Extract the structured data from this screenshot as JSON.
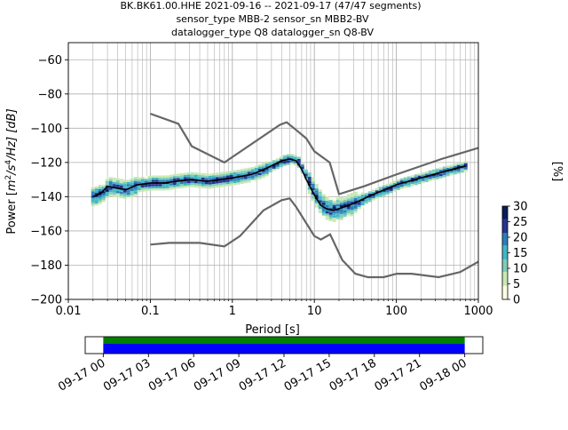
{
  "title": {
    "line1": "BK.BK61.00.HHE   2021-09-16 -- 2021-09-17  (47/47 segments)",
    "line2": "sensor_type MBB-2 sensor_sn MBB2-BV",
    "line3": "datalogger_type Q8 datalogger_sn Q8-BV"
  },
  "chart_data": {
    "type": "heatmap",
    "xlabel": "Period [s]",
    "ylabel_parts": {
      "prefix": "Power [",
      "m": "m",
      "e2": "2",
      "s": "/s",
      "e4": "4",
      "tail": "/Hz] [dB]"
    },
    "xscale": "log",
    "xlim": [
      0.01,
      1000
    ],
    "ylim": [
      -200,
      -50
    ],
    "x_ticks": [
      {
        "v": 0.01,
        "label": "0.01"
      },
      {
        "v": 0.1,
        "label": "0.1"
      },
      {
        "v": 1,
        "label": "1"
      },
      {
        "v": 10,
        "label": "10"
      },
      {
        "v": 100,
        "label": "100"
      },
      {
        "v": 1000,
        "label": "1000"
      }
    ],
    "y_ticks": [
      {
        "v": -60,
        "label": "−60"
      },
      {
        "v": -80,
        "label": "−80"
      },
      {
        "v": -100,
        "label": "−100"
      },
      {
        "v": -120,
        "label": "−120"
      },
      {
        "v": -140,
        "label": "−140"
      },
      {
        "v": -160,
        "label": "−160"
      },
      {
        "v": -180,
        "label": "−180"
      },
      {
        "v": -200,
        "label": "−200"
      }
    ],
    "grid": true,
    "nhnm": [
      [
        0.1,
        -168
      ],
      [
        0.17,
        -167
      ],
      [
        0.4,
        -167
      ],
      [
        0.8,
        -169
      ],
      [
        1.24,
        -163
      ],
      [
        2.4,
        -148
      ],
      [
        4,
        -142
      ],
      [
        5,
        -141
      ],
      [
        6,
        -146
      ],
      [
        10,
        -163
      ],
      [
        12,
        -165
      ],
      [
        15.6,
        -162
      ],
      [
        21.9,
        -177
      ],
      [
        31.6,
        -185
      ],
      [
        45,
        -187
      ],
      [
        70,
        -187
      ],
      [
        101,
        -185
      ],
      [
        154,
        -185
      ],
      [
        328,
        -187
      ],
      [
        600,
        -184
      ],
      [
        1000,
        -178
      ]
    ],
    "nlnm": [
      [
        0.1,
        -91.5
      ],
      [
        0.22,
        -97.4
      ],
      [
        0.32,
        -110.5
      ],
      [
        0.8,
        -120
      ],
      [
        3.8,
        -98
      ],
      [
        4.6,
        -96.5
      ],
      [
        6,
        -101
      ],
      [
        8,
        -106
      ],
      [
        10,
        -113.5
      ],
      [
        15.4,
        -120
      ],
      [
        20,
        -138.5
      ],
      [
        40,
        -134
      ],
      [
        100,
        -127
      ],
      [
        354,
        -118
      ],
      [
        1000,
        -111.5
      ]
    ],
    "mode": [
      [
        0.02,
        -140
      ],
      [
        0.025,
        -138
      ],
      [
        0.03,
        -134
      ],
      [
        0.04,
        -135
      ],
      [
        0.05,
        -136
      ],
      [
        0.07,
        -133
      ],
      [
        0.1,
        -132
      ],
      [
        0.15,
        -132
      ],
      [
        0.2,
        -131
      ],
      [
        0.3,
        -130
      ],
      [
        0.5,
        -131
      ],
      [
        0.7,
        -130
      ],
      [
        1,
        -129
      ],
      [
        1.3,
        -128
      ],
      [
        1.7,
        -127
      ],
      [
        2.2,
        -125
      ],
      [
        3,
        -122
      ],
      [
        4,
        -119
      ],
      [
        5,
        -118
      ],
      [
        6,
        -119
      ],
      [
        7,
        -124
      ],
      [
        8,
        -130
      ],
      [
        10,
        -139
      ],
      [
        12,
        -145
      ],
      [
        14,
        -147
      ],
      [
        17,
        -148
      ],
      [
        20,
        -147
      ],
      [
        30,
        -144
      ],
      [
        50,
        -139
      ],
      [
        80,
        -135
      ],
      [
        100,
        -133
      ],
      [
        200,
        -129
      ],
      [
        400,
        -125
      ],
      [
        700,
        -122
      ]
    ],
    "colorbar": {
      "label": "[%]",
      "ticks": [
        {
          "v": 0,
          "label": "0"
        },
        {
          "v": 5,
          "label": "5"
        },
        {
          "v": 10,
          "label": "10"
        },
        {
          "v": 15,
          "label": "15"
        },
        {
          "v": 20,
          "label": "20"
        },
        {
          "v": 25,
          "label": "25"
        },
        {
          "v": 30,
          "label": "30"
        }
      ],
      "range": [
        0,
        30
      ],
      "colors": [
        "#ffffe5",
        "#c7e9b4",
        "#7fcdbb",
        "#41b6c4",
        "#2c7fb8",
        "#253494",
        "#081d58"
      ]
    },
    "timeline": {
      "ticks": [
        {
          "v": 0,
          "label": "09-17 00"
        },
        {
          "v": 3,
          "label": "09-17 03"
        },
        {
          "v": 6,
          "label": "09-17 06"
        },
        {
          "v": 9,
          "label": "09-17 09"
        },
        {
          "v": 12,
          "label": "09-17 12"
        },
        {
          "v": 15,
          "label": "09-17 15"
        },
        {
          "v": 18,
          "label": "09-17 18"
        },
        {
          "v": 21,
          "label": "09-17 21"
        },
        {
          "v": 24,
          "label": "09-18 00"
        }
      ],
      "range_hours": [
        -1.2,
        25.2
      ],
      "coverage_hours": [
        0,
        24
      ],
      "coverage_colors": [
        "#008000",
        "#0000ff"
      ]
    }
  }
}
